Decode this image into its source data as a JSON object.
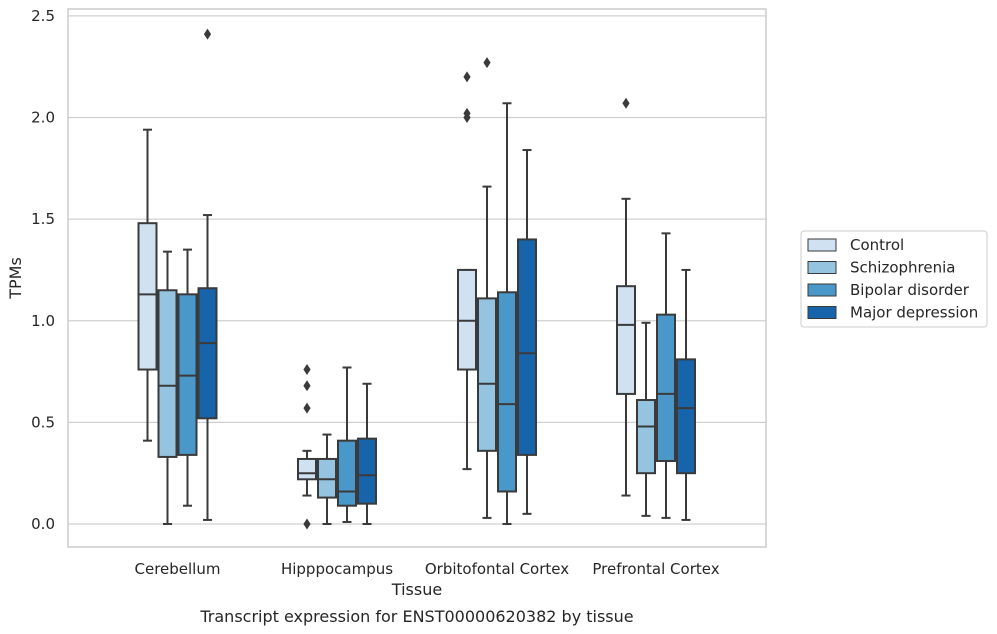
{
  "chart_data": {
    "type": "box",
    "title": "",
    "caption": "Transcript expression for ENST00000620382 by tissue",
    "xlabel": "Tissue",
    "ylabel": "TPMs",
    "ylim": [
      -0.12,
      2.55
    ],
    "yticks": [
      0.0,
      0.5,
      1.0,
      1.5,
      2.0,
      2.5
    ],
    "ytick_labels": [
      "0.0",
      "0.5",
      "1.0",
      "1.5",
      "2.0",
      "2.5"
    ],
    "grid": "horizontal",
    "legend_position": "right",
    "categories": [
      "Cerebellum",
      "Hipppocampus",
      "Orbitofontal Cortex",
      "Prefrontal Cortex"
    ],
    "series": [
      {
        "name": "Control",
        "color": "#d0e1f2",
        "boxes": [
          {
            "whislo": 0.41,
            "q1": 0.76,
            "med": 1.13,
            "q3": 1.48,
            "whishi": 1.94,
            "fliers": []
          },
          {
            "whislo": 0.14,
            "q1": 0.22,
            "med": 0.25,
            "q3": 0.32,
            "whishi": 0.36,
            "fliers": [
              0.76,
              0.68,
              0.57,
              0.0
            ]
          },
          {
            "whislo": 0.27,
            "q1": 0.76,
            "med": 1.0,
            "q3": 1.25,
            "whishi": 1.25,
            "fliers": [
              2.2,
              2.02,
              2.0
            ]
          },
          {
            "whislo": 0.14,
            "q1": 0.64,
            "med": 0.98,
            "q3": 1.17,
            "whishi": 1.6,
            "fliers": [
              2.07
            ]
          }
        ]
      },
      {
        "name": "Schizophrenia",
        "color": "#94c4df",
        "boxes": [
          {
            "whislo": 0.0,
            "q1": 0.33,
            "med": 0.68,
            "q3": 1.15,
            "whishi": 1.34,
            "fliers": []
          },
          {
            "whislo": 0.0,
            "q1": 0.13,
            "med": 0.22,
            "q3": 0.32,
            "whishi": 0.44,
            "fliers": []
          },
          {
            "whislo": 0.03,
            "q1": 0.36,
            "med": 0.69,
            "q3": 1.11,
            "whishi": 1.66,
            "fliers": [
              2.27
            ]
          },
          {
            "whislo": 0.04,
            "q1": 0.25,
            "med": 0.48,
            "q3": 0.61,
            "whishi": 0.99,
            "fliers": []
          }
        ]
      },
      {
        "name": "Bipolar disorder",
        "color": "#4a98c9",
        "boxes": [
          {
            "whislo": 0.09,
            "q1": 0.34,
            "med": 0.73,
            "q3": 1.13,
            "whishi": 1.35,
            "fliers": []
          },
          {
            "whislo": 0.01,
            "q1": 0.09,
            "med": 0.16,
            "q3": 0.41,
            "whishi": 0.77,
            "fliers": []
          },
          {
            "whislo": 0.0,
            "q1": 0.16,
            "med": 0.59,
            "q3": 1.14,
            "whishi": 2.07,
            "fliers": []
          },
          {
            "whislo": 0.03,
            "q1": 0.31,
            "med": 0.64,
            "q3": 1.03,
            "whishi": 1.43,
            "fliers": []
          }
        ]
      },
      {
        "name": "Major depression",
        "color": "#1764ab",
        "boxes": [
          {
            "whislo": 0.02,
            "q1": 0.52,
            "med": 0.89,
            "q3": 1.16,
            "whishi": 1.52,
            "fliers": [
              2.41
            ]
          },
          {
            "whislo": 0.0,
            "q1": 0.1,
            "med": 0.24,
            "q3": 0.42,
            "whishi": 0.69,
            "fliers": []
          },
          {
            "whislo": 0.05,
            "q1": 0.34,
            "med": 0.84,
            "q3": 1.4,
            "whishi": 1.84,
            "fliers": []
          },
          {
            "whislo": 0.02,
            "q1": 0.25,
            "med": 0.57,
            "q3": 0.81,
            "whishi": 1.25,
            "fliers": []
          }
        ]
      }
    ]
  }
}
